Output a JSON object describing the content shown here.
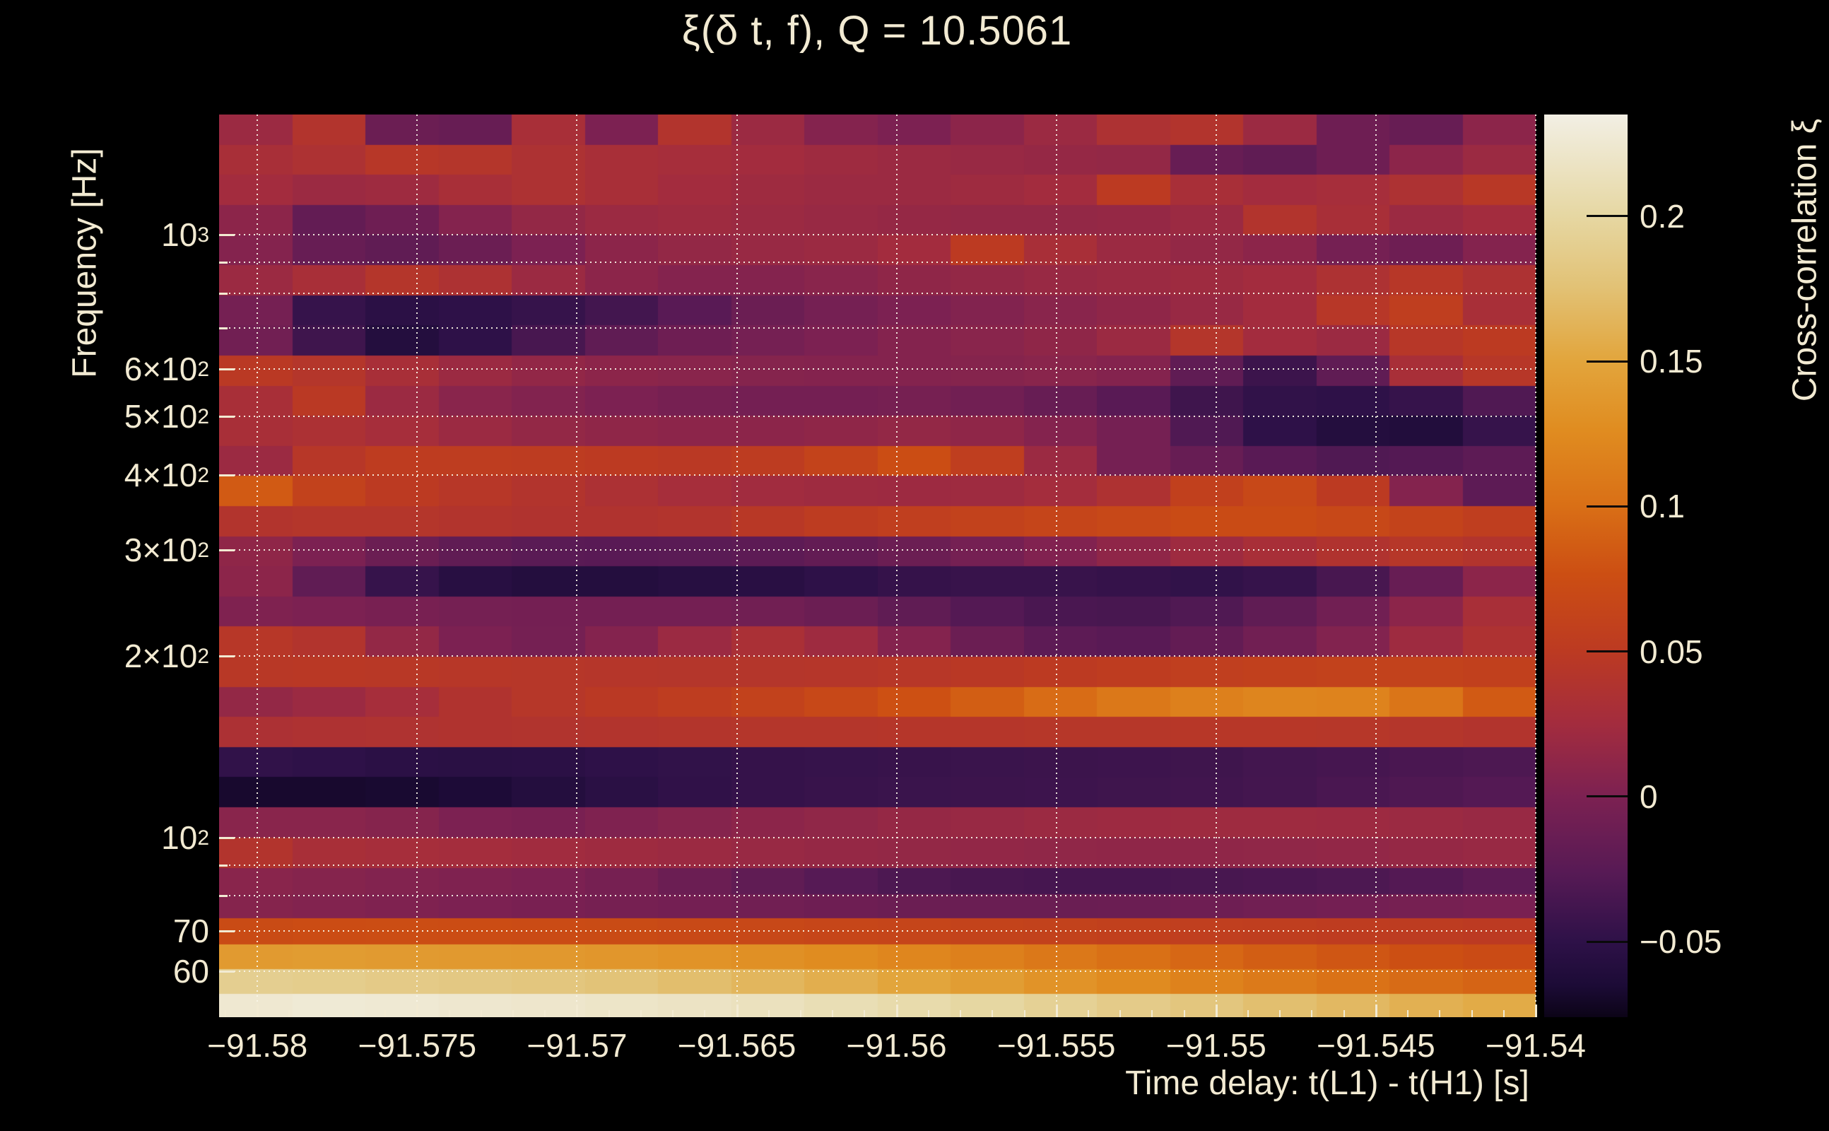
{
  "title": {
    "text": "ξ(δ t, f), Q = 10.5061",
    "q_value": "10.5061"
  },
  "x_axis": {
    "title": "Time delay: t(L1) - t(H1) [s]",
    "tick_labels": [
      "−91.58",
      "−91.575",
      "−91.57",
      "−91.565",
      "−91.56",
      "−91.555",
      "−91.55",
      "−91.545",
      "−91.54"
    ],
    "tick_values": [
      -91.58,
      -91.575,
      -91.57,
      -91.565,
      -91.56,
      -91.555,
      -91.55,
      -91.545,
      -91.54
    ],
    "minor_tick_step": 0.001,
    "range": [
      -91.5812,
      -91.54
    ]
  },
  "y_axis": {
    "title": "Frequency [Hz]",
    "scale": "log",
    "range": [
      50.3,
      1585
    ],
    "tick_labels": [
      {
        "base": "10",
        "exp": "3",
        "f": 1000
      },
      {
        "base": "6×10",
        "exp": "2",
        "f": 600
      },
      {
        "base": "5×10",
        "exp": "2",
        "f": 500
      },
      {
        "base": "4×10",
        "exp": "2",
        "f": 400
      },
      {
        "base": "3×10",
        "exp": "2",
        "f": 300
      },
      {
        "base": "2×10",
        "exp": "2",
        "f": 200
      },
      {
        "base": "10",
        "exp": "2",
        "f": 100
      },
      {
        "base": "70",
        "exp": "",
        "f": 70
      },
      {
        "base": "60",
        "exp": "",
        "f": 60
      }
    ],
    "gridline_frequencies": [
      60,
      70,
      80,
      90,
      100,
      200,
      300,
      400,
      500,
      600,
      700,
      800,
      900,
      1000
    ]
  },
  "colorbar": {
    "title": "Cross-correlation ξ",
    "tick_labels": [
      "0.2",
      "0.15",
      "0.1",
      "0.05",
      "0",
      "−0.05"
    ],
    "tick_values": [
      0.2,
      0.15,
      0.1,
      0.05,
      0,
      -0.05
    ],
    "vmin": -0.076,
    "vmax": 0.235,
    "palette": [
      {
        "t": 0.0,
        "color": "#0c0417"
      },
      {
        "t": 0.035,
        "color": "#1c0b36"
      },
      {
        "t": 0.084,
        "color": "#2e1148"
      },
      {
        "t": 0.16,
        "color": "#571a55"
      },
      {
        "t": 0.244,
        "color": "#7c2152"
      },
      {
        "t": 0.325,
        "color": "#a32c3e"
      },
      {
        "t": 0.405,
        "color": "#bc3a22"
      },
      {
        "t": 0.49,
        "color": "#cc4e13"
      },
      {
        "t": 0.566,
        "color": "#d96f16"
      },
      {
        "t": 0.65,
        "color": "#e08c20"
      },
      {
        "t": 0.727,
        "color": "#e2a53c"
      },
      {
        "t": 0.81,
        "color": "#e2c276"
      },
      {
        "t": 0.887,
        "color": "#e6d7a2"
      },
      {
        "t": 1.0,
        "color": "#f2efe4"
      }
    ]
  },
  "chart_data": {
    "type": "heatmap",
    "title": "ξ(δ t, f), Q = 10.5061",
    "xlabel": "Time delay: t(L1) - t(H1) [s]",
    "ylabel": "Frequency [Hz]",
    "zlabel": "Cross-correlation ξ",
    "x_range": [
      -91.5812,
      -91.54
    ],
    "y_scale": "log",
    "z_range": [
      -0.076,
      0.235
    ],
    "grid": "dotted",
    "columns": 18,
    "freq_edges_hz": [
      50.3,
      55,
      60.5,
      66.5,
      73.5,
      80.5,
      89,
      100,
      112.2,
      125.9,
      141.3,
      158.5,
      177.8,
      199.5,
      223.9,
      251.2,
      281.8,
      316.2,
      354.8,
      398.1,
      446.7,
      501.2,
      562.3,
      631,
      708,
      794.3,
      891.3,
      1000,
      1122,
      1259,
      1413,
      1585
    ],
    "rows_top_to_bottom": [
      [
        0.02,
        0.04,
        -0.012,
        -0.015,
        0.03,
        0.0,
        0.04,
        0.02,
        0.005,
        0.0,
        0.01,
        0.02,
        0.035,
        0.04,
        0.02,
        -0.01,
        -0.015,
        0.01
      ],
      [
        0.03,
        0.035,
        0.045,
        0.042,
        0.035,
        0.03,
        0.028,
        0.025,
        0.022,
        0.02,
        0.018,
        0.016,
        0.015,
        -0.015,
        -0.02,
        -0.01,
        0.01,
        0.02
      ],
      [
        0.025,
        0.02,
        0.022,
        0.03,
        0.035,
        0.03,
        0.025,
        0.022,
        0.02,
        0.02,
        0.022,
        0.025,
        0.05,
        0.03,
        0.025,
        0.028,
        0.035,
        0.046
      ],
      [
        0.01,
        -0.018,
        -0.01,
        0.005,
        0.015,
        0.02,
        0.022,
        0.02,
        0.018,
        0.016,
        0.015,
        0.015,
        0.016,
        0.02,
        0.04,
        0.03,
        0.02,
        0.025
      ],
      [
        0.005,
        -0.015,
        -0.02,
        -0.012,
        0.0,
        0.01,
        0.015,
        0.018,
        0.02,
        0.025,
        0.05,
        0.03,
        0.02,
        0.015,
        0.01,
        -0.005,
        -0.01,
        0.005
      ],
      [
        0.02,
        0.03,
        0.042,
        0.035,
        0.02,
        0.01,
        0.005,
        0.005,
        0.008,
        0.012,
        0.015,
        0.018,
        0.02,
        0.022,
        0.025,
        0.035,
        0.045,
        0.035
      ],
      [
        -0.005,
        -0.045,
        -0.052,
        -0.05,
        -0.045,
        -0.038,
        -0.025,
        -0.012,
        -0.005,
        0.0,
        0.004,
        0.008,
        0.012,
        0.018,
        0.025,
        0.045,
        0.055,
        0.03
      ],
      [
        -0.008,
        -0.04,
        -0.058,
        -0.05,
        -0.035,
        -0.02,
        -0.01,
        -0.005,
        0.0,
        0.005,
        0.008,
        0.012,
        0.02,
        0.042,
        0.025,
        0.02,
        0.045,
        0.05
      ],
      [
        0.048,
        0.042,
        0.03,
        0.02,
        0.014,
        0.01,
        0.008,
        0.006,
        0.005,
        0.005,
        0.006,
        0.008,
        0.005,
        -0.02,
        -0.042,
        -0.02,
        0.03,
        0.045
      ],
      [
        0.03,
        0.048,
        0.02,
        0.008,
        0.004,
        0.0,
        -0.004,
        -0.006,
        -0.006,
        -0.004,
        -0.008,
        -0.015,
        -0.025,
        -0.04,
        -0.048,
        -0.05,
        -0.045,
        -0.03
      ],
      [
        0.03,
        0.034,
        0.028,
        0.02,
        0.015,
        0.012,
        0.01,
        0.01,
        0.012,
        0.015,
        0.012,
        0.005,
        -0.005,
        -0.03,
        -0.05,
        -0.058,
        -0.06,
        -0.045
      ],
      [
        0.02,
        0.045,
        0.053,
        0.054,
        0.052,
        0.05,
        0.048,
        0.052,
        0.062,
        0.075,
        0.055,
        0.02,
        -0.005,
        -0.015,
        -0.025,
        -0.03,
        -0.028,
        -0.022
      ],
      [
        0.085,
        0.06,
        0.05,
        0.045,
        0.04,
        0.034,
        0.028,
        0.024,
        0.022,
        0.021,
        0.022,
        0.026,
        0.036,
        0.058,
        0.068,
        0.05,
        0.005,
        -0.022
      ],
      [
        0.04,
        0.042,
        0.042,
        0.04,
        0.038,
        0.038,
        0.04,
        0.046,
        0.052,
        0.056,
        0.06,
        0.064,
        0.068,
        0.072,
        0.072,
        0.068,
        0.062,
        0.055
      ],
      [
        0.012,
        0.0,
        -0.012,
        -0.02,
        -0.024,
        -0.025,
        -0.024,
        -0.022,
        -0.018,
        -0.012,
        -0.005,
        0.003,
        0.012,
        0.022,
        0.03,
        0.038,
        0.044,
        0.04
      ],
      [
        0.01,
        -0.02,
        -0.045,
        -0.055,
        -0.058,
        -0.058,
        -0.056,
        -0.054,
        -0.05,
        -0.046,
        -0.044,
        -0.044,
        -0.046,
        -0.048,
        -0.045,
        -0.035,
        -0.015,
        0.01
      ],
      [
        0.002,
        0.0,
        -0.003,
        -0.005,
        -0.006,
        -0.006,
        -0.006,
        -0.008,
        -0.012,
        -0.02,
        -0.028,
        -0.034,
        -0.035,
        -0.03,
        -0.02,
        -0.008,
        0.01,
        0.03
      ],
      [
        0.045,
        0.04,
        0.015,
        0.0,
        -0.005,
        0.005,
        0.02,
        0.032,
        0.022,
        0.005,
        -0.012,
        -0.022,
        -0.025,
        -0.018,
        -0.008,
        0.004,
        0.022,
        0.036
      ],
      [
        0.046,
        0.047,
        0.046,
        0.045,
        0.044,
        0.043,
        0.042,
        0.042,
        0.043,
        0.045,
        0.047,
        0.05,
        0.053,
        0.056,
        0.058,
        0.06,
        0.06,
        0.058
      ],
      [
        0.015,
        0.02,
        0.028,
        0.038,
        0.044,
        0.048,
        0.054,
        0.06,
        0.068,
        0.078,
        0.088,
        0.098,
        0.108,
        0.115,
        0.12,
        0.118,
        0.105,
        0.085
      ],
      [
        0.034,
        0.036,
        0.037,
        0.038,
        0.039,
        0.04,
        0.041,
        0.042,
        0.042,
        0.043,
        0.043,
        0.044,
        0.044,
        0.045,
        0.045,
        0.044,
        0.042,
        0.04
      ],
      [
        -0.048,
        -0.05,
        -0.052,
        -0.053,
        -0.052,
        -0.05,
        -0.048,
        -0.046,
        -0.045,
        -0.044,
        -0.043,
        -0.042,
        -0.041,
        -0.04,
        -0.038,
        -0.036,
        -0.034,
        -0.032
      ],
      [
        -0.068,
        -0.068,
        -0.067,
        -0.064,
        -0.058,
        -0.053,
        -0.049,
        -0.046,
        -0.044,
        -0.043,
        -0.042,
        -0.041,
        -0.04,
        -0.039,
        -0.037,
        -0.034,
        -0.031,
        -0.028
      ],
      [
        0.008,
        0.008,
        0.006,
        0.0,
        -0.002,
        0.002,
        0.006,
        0.01,
        0.013,
        0.016,
        0.018,
        0.02,
        0.021,
        0.022,
        0.022,
        0.021,
        0.02,
        0.018
      ],
      [
        0.04,
        0.03,
        0.028,
        0.026,
        0.024,
        0.022,
        0.02,
        0.018,
        0.016,
        0.015,
        0.014,
        0.013,
        0.012,
        0.012,
        0.013,
        0.014,
        0.016,
        0.018
      ],
      [
        0.008,
        0.006,
        0.004,
        0.002,
        0.0,
        -0.004,
        -0.012,
        -0.02,
        -0.027,
        -0.032,
        -0.035,
        -0.036,
        -0.036,
        -0.035,
        -0.034,
        -0.032,
        -0.028,
        -0.022
      ],
      [
        0.006,
        0.004,
        0.002,
        0.0,
        -0.002,
        -0.004,
        -0.006,
        -0.008,
        -0.01,
        -0.012,
        -0.013,
        -0.013,
        -0.012,
        -0.01,
        -0.008,
        -0.006,
        -0.004,
        -0.002
      ],
      [
        0.072,
        0.074,
        0.075,
        0.074,
        0.073,
        0.072,
        0.07,
        0.068,
        0.066,
        0.064,
        0.062,
        0.06,
        0.058,
        0.056,
        0.055,
        0.053,
        0.052,
        0.05
      ],
      [
        0.14,
        0.141,
        0.14,
        0.139,
        0.138,
        0.136,
        0.133,
        0.13,
        0.126,
        0.121,
        0.115,
        0.108,
        0.101,
        0.094,
        0.088,
        0.082,
        0.077,
        0.073
      ],
      [
        0.19,
        0.188,
        0.185,
        0.183,
        0.18,
        0.177,
        0.172,
        0.165,
        0.158,
        0.15,
        0.142,
        0.133,
        0.125,
        0.117,
        0.11,
        0.103,
        0.097,
        0.092
      ],
      [
        0.225,
        0.227,
        0.226,
        0.224,
        0.222,
        0.22,
        0.218,
        0.215,
        0.21,
        0.205,
        0.2,
        0.193,
        0.186,
        0.18,
        0.173,
        0.167,
        0.16,
        0.155
      ]
    ]
  },
  "colors": {
    "background": "#000000",
    "text": "#f2ead2",
    "gridline": "#faf6e8"
  }
}
